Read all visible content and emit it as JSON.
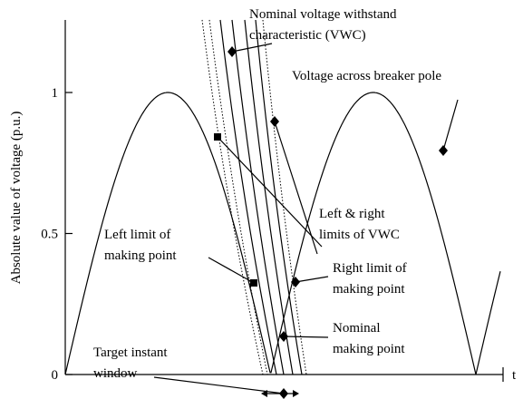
{
  "y_axis": {
    "label": "Absolute value of voltage (p.u.)",
    "ticks": [
      0,
      0.5,
      1
    ]
  },
  "x_axis": {
    "label": "t"
  },
  "annotations": [
    {
      "lines": [
        "Nominal voltage withstand",
        "characteristic (VWC)"
      ]
    },
    {
      "lines": [
        "Voltage across breaker pole"
      ]
    },
    {
      "lines": [
        "Left & right",
        "limits of VWC"
      ]
    },
    {
      "lines": [
        "Left limit of",
        "making point"
      ]
    },
    {
      "lines": [
        "Right limit of",
        "making point"
      ]
    },
    {
      "lines": [
        "Nominal",
        "making point"
      ]
    },
    {
      "lines": [
        "Target instant",
        "window"
      ]
    }
  ]
}
